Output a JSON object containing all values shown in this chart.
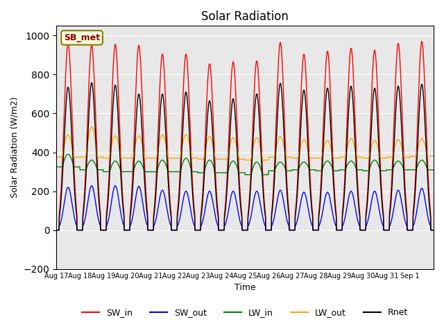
{
  "title": "Solar Radiation",
  "ylabel": "Solar Radiation (W/m2)",
  "xlabel": "Time",
  "ylim": [
    -200,
    1050
  ],
  "annotation_text": "SB_met",
  "bg_color": "#e8e8e8",
  "legend_entries": [
    "SW_in",
    "SW_out",
    "LW_in",
    "LW_out",
    "Rnet"
  ],
  "legend_colors": [
    "red",
    "blue",
    "green",
    "orange",
    "black"
  ],
  "xtick_labels": [
    "Aug 17",
    "Aug 18",
    "Aug 19",
    "Aug 20",
    "Aug 21",
    "Aug 22",
    "Aug 23",
    "Aug 24",
    "Aug 25",
    "Aug 26",
    "Aug 27",
    "Aug 28",
    "Aug 29",
    "Aug 30",
    "Aug 31",
    "Sep 1"
  ],
  "num_days": 16,
  "SW_in_peaks": [
    960,
    950,
    955,
    950,
    905,
    905,
    855,
    865,
    870,
    965,
    905,
    920,
    935,
    925,
    960,
    970
  ],
  "SW_out_peaks": [
    220,
    228,
    228,
    225,
    205,
    200,
    200,
    200,
    200,
    205,
    195,
    195,
    200,
    200,
    205,
    215
  ],
  "LW_in_day": [
    390,
    360,
    355,
    355,
    360,
    370,
    360,
    355,
    350,
    350,
    350,
    355,
    355,
    360,
    355,
    360
  ],
  "LW_in_night": [
    325,
    310,
    300,
    300,
    300,
    300,
    295,
    295,
    285,
    305,
    310,
    305,
    310,
    305,
    310,
    310
  ],
  "LW_out_day": [
    490,
    530,
    485,
    485,
    490,
    490,
    480,
    475,
    475,
    480,
    465,
    460,
    470,
    460,
    465,
    470
  ],
  "LW_out_night": [
    375,
    375,
    370,
    370,
    370,
    370,
    365,
    365,
    360,
    375,
    370,
    370,
    375,
    370,
    375,
    380
  ],
  "Rnet_peaks": [
    735,
    758,
    745,
    700,
    700,
    710,
    665,
    675,
    700,
    755,
    720,
    730,
    740,
    730,
    740,
    750
  ]
}
